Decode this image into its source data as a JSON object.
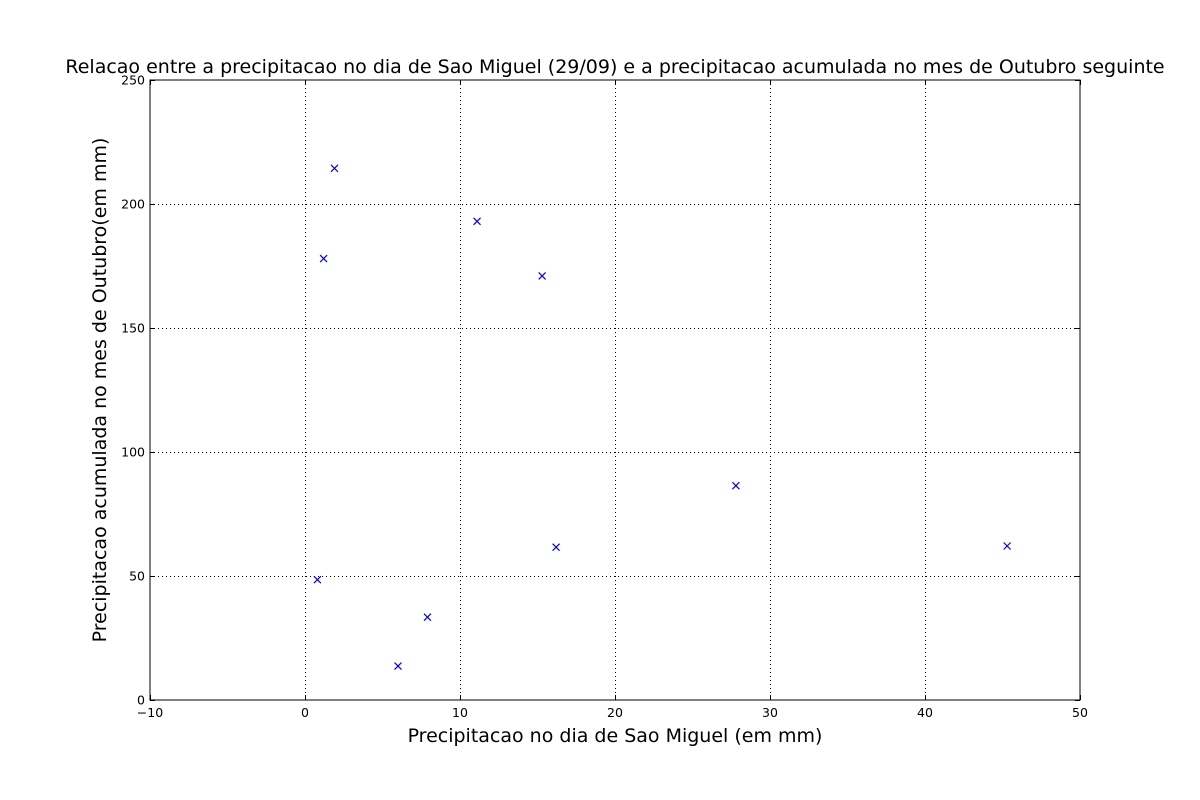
{
  "chart_data": {
    "type": "scatter",
    "title": "Relacao entre a precipitacao no dia de Sao Miguel (29/09) e a precipitacao acumulada no mes de Outubro seguinte",
    "xlabel": "Precipitacao no dia de Sao Miguel (em mm)",
    "ylabel": "Precipitacao acumulada no mes de Outubro(em mm)",
    "xlim": [
      -10,
      50
    ],
    "ylim": [
      0,
      250
    ],
    "xticks": [
      -10,
      0,
      10,
      20,
      30,
      40,
      50
    ],
    "xtick_labels": [
      "−10",
      "0",
      "10",
      "20",
      "30",
      "40",
      "50"
    ],
    "yticks": [
      0,
      50,
      100,
      150,
      200,
      250
    ],
    "ytick_labels": [
      "0",
      "50",
      "100",
      "150",
      "200",
      "250"
    ],
    "grid": true,
    "marker": "x",
    "color": "#0000ff",
    "points": [
      {
        "x": 1.9,
        "y": 214.4
      },
      {
        "x": 1.2,
        "y": 178.0
      },
      {
        "x": 11.1,
        "y": 193.0
      },
      {
        "x": 15.3,
        "y": 171.0
      },
      {
        "x": 27.8,
        "y": 86.4
      },
      {
        "x": 16.2,
        "y": 61.6
      },
      {
        "x": 45.3,
        "y": 62.1
      },
      {
        "x": 0.8,
        "y": 48.5
      },
      {
        "x": 7.9,
        "y": 33.4
      },
      {
        "x": 6.0,
        "y": 13.7
      }
    ]
  }
}
